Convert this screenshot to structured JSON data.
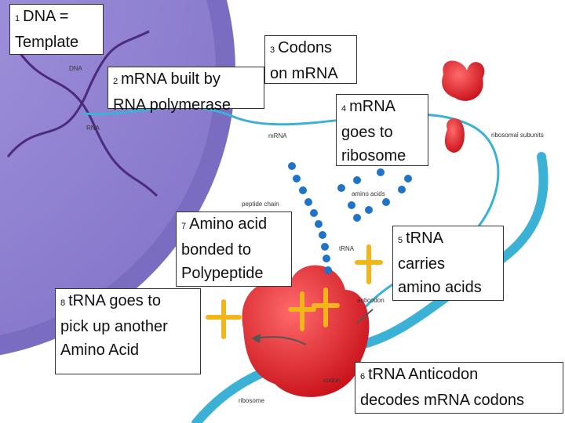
{
  "callouts": [
    {
      "number": "1",
      "lines": [
        "DNA =",
        "Template"
      ]
    },
    {
      "number": "2",
      "lines": [
        "mRNA built by",
        "RNA polymerase"
      ]
    },
    {
      "number": "3",
      "lines": [
        "Codons",
        "on mRNA"
      ]
    },
    {
      "number": "4",
      "lines": [
        "mRNA",
        "goes to",
        "ribosome"
      ]
    },
    {
      "number": "5",
      "lines": [
        "tRNA",
        "carries",
        "amino acids"
      ]
    },
    {
      "number": "6",
      "lines": [
        "tRNA Anticodon",
        "decodes mRNA codons"
      ]
    },
    {
      "number": "7",
      "lines": [
        "Amino acid",
        "bonded to",
        "Polypeptide"
      ]
    },
    {
      "number": "8",
      "lines": [
        "tRNA goes to",
        "pick up another",
        "Amino Acid"
      ]
    }
  ],
  "labels": [
    "DNA",
    "RNA",
    "mRNA",
    "ribosomal subunits",
    "peptide chain",
    "amino acids",
    "tRNA",
    "anticodon",
    "codon",
    "ribosome"
  ]
}
